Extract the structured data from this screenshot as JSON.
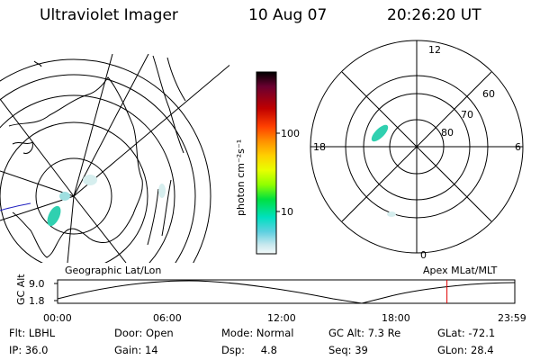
{
  "header": {
    "instrument": "Ultraviolet Imager",
    "date": "10 Aug 07",
    "time": "20:26:20 UT"
  },
  "left_panel": {
    "label": "Geographic Lat/Lon"
  },
  "right_panel": {
    "label": "Apex  MLat/MLT",
    "mlt_labels": {
      "top": "12",
      "left": "18",
      "right": "6",
      "bottom": "0"
    },
    "lat_labels": [
      "60",
      "70",
      "80"
    ]
  },
  "colorbar": {
    "unit_label": "photon cm⁻²s⁻¹",
    "ticks": [
      "100",
      "10"
    ],
    "colors": [
      "#000000",
      "#6a0030",
      "#c00000",
      "#ff4000",
      "#ff9000",
      "#ffd000",
      "#e8ff00",
      "#90ff00",
      "#00e040",
      "#00e0c0",
      "#60d0e0",
      "#c8e8ee",
      "#f4fafa"
    ]
  },
  "timeline": {
    "y_axis_label": "GC Alt",
    "y_ticks": [
      "9.0",
      "1.8"
    ],
    "x_ticks": [
      "00:00",
      "06:00",
      "12:00",
      "18:00",
      "23:59"
    ],
    "current_time_fraction": 0.8516,
    "marker_color": "#e00000"
  },
  "info": {
    "flt_label": "Flt:",
    "flt_value": "LBHL",
    "ip_label": "IP:",
    "ip_value": "36.0",
    "door_label": "Door:",
    "door_value": "Open",
    "gain_label": "Gain:",
    "gain_value": "14",
    "mode_label": "Mode:",
    "mode_value": "Normal",
    "dsp_label": "Dsp:",
    "dsp_value": "4.8",
    "gcalt_label": "GC Alt:",
    "gcalt_value": "7.3 Re",
    "seq_label": "Seq:",
    "seq_value": "39",
    "glat_label": "GLat:",
    "glat_value": "-72.1",
    "glon_label": "GLon:",
    "glon_value": "28.4"
  }
}
